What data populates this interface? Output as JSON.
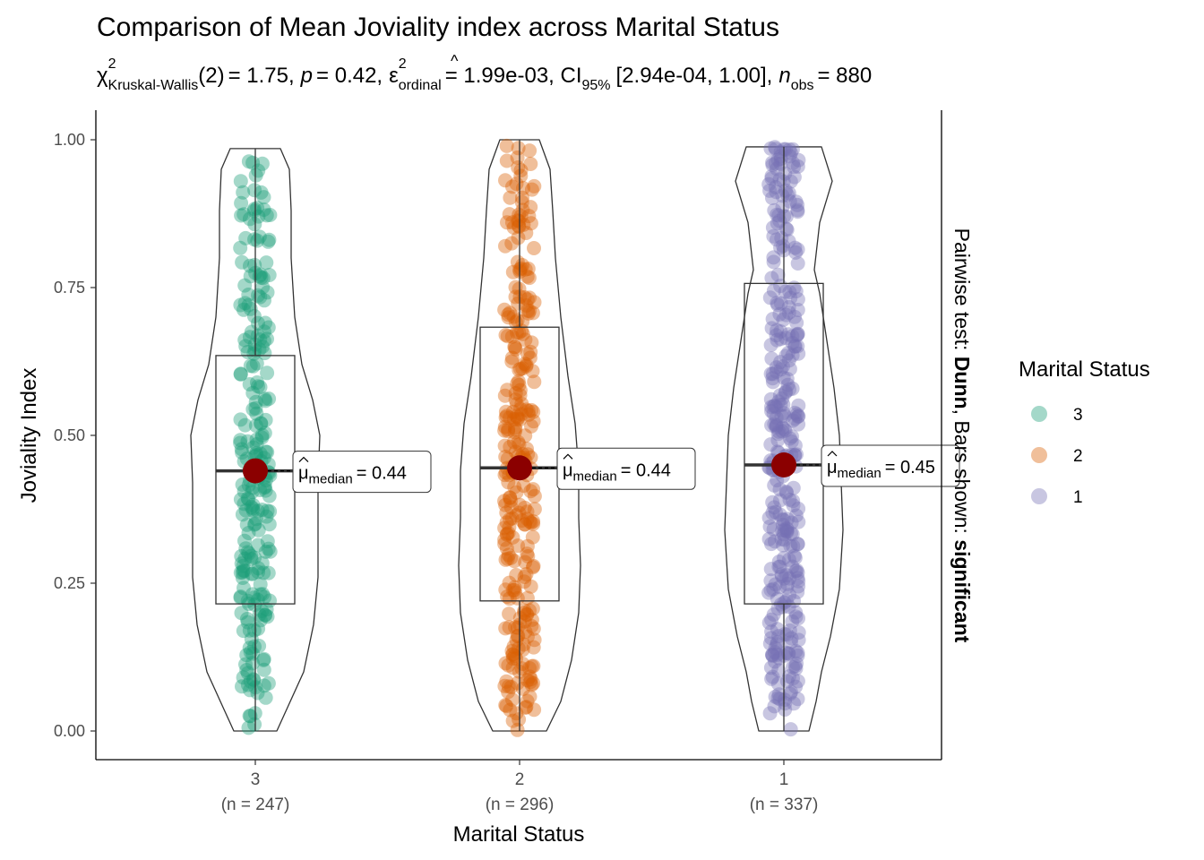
{
  "chart_data": {
    "type": "violin-box",
    "title": "Comparison of Mean Joviality index across Marital Status",
    "subtitle": {
      "chi_symbol": "χ",
      "chi_sup": "2",
      "chi_sub": "Kruskal-Wallis",
      "df": "(2)",
      "statistic": "= 1.75,",
      "p_symbol": "p",
      "p_value": "= 0.42,",
      "eps_symbol": "ε",
      "eps_hat": "^",
      "eps_sup": "2",
      "eps_sub": "ordinal",
      "eps_value": "= 1.99e-03, CI",
      "ci_sub": "95%",
      "ci_value": "[2.94e-04, 1.00],",
      "n_symbol": "n",
      "n_sub": "obs",
      "n_value": "= 880"
    },
    "xlabel": "Marital Status",
    "ylabel": "Joviality Index",
    "ylim": [
      -0.05,
      1.05
    ],
    "yticks": [
      "0.00",
      "0.25",
      "0.50",
      "0.75",
      "1.00"
    ],
    "caption": {
      "part1": "Pairwise test: ",
      "part2": "Dunn",
      "part3": ", Bars shown: ",
      "part4": "significant"
    },
    "legend": {
      "title": "Marital Status",
      "placement": "right",
      "items": [
        {
          "label": "3",
          "color": "#1b9e77"
        },
        {
          "label": "2",
          "color": "#d95f02"
        },
        {
          "label": "1",
          "color": "#7570b3"
        }
      ]
    },
    "point_alpha": 0.4,
    "mean_point_color": "#8b0000",
    "groups": [
      {
        "category": "3",
        "n_label": "(n = 247)",
        "n": 247,
        "color": "#1b9e77",
        "box": {
          "q1": 0.215,
          "median": 0.44,
          "q3": 0.635,
          "whisker_low": 0.0,
          "whisker_high": 0.985
        },
        "median_label": {
          "mu_hat": "μ",
          "sub": "median",
          "value": "= 0.44"
        },
        "median": 0.44
      },
      {
        "category": "2",
        "n_label": "(n = 296)",
        "n": 296,
        "color": "#d95f02",
        "box": {
          "q1": 0.22,
          "median": 0.445,
          "q3": 0.683,
          "whisker_low": 0.0,
          "whisker_high": 1.0
        },
        "median_label": {
          "mu_hat": "μ",
          "sub": "median",
          "value": "= 0.44"
        },
        "median": 0.445
      },
      {
        "category": "1",
        "n_label": "(n = 337)",
        "n": 337,
        "color": "#7570b3",
        "box": {
          "q1": 0.215,
          "median": 0.45,
          "q3": 0.757,
          "whisker_low": 0.0,
          "whisker_high": 0.988
        },
        "median_label": {
          "mu_hat": "μ",
          "sub": "median",
          "value": "= 0.45"
        },
        "median": 0.45
      }
    ]
  }
}
